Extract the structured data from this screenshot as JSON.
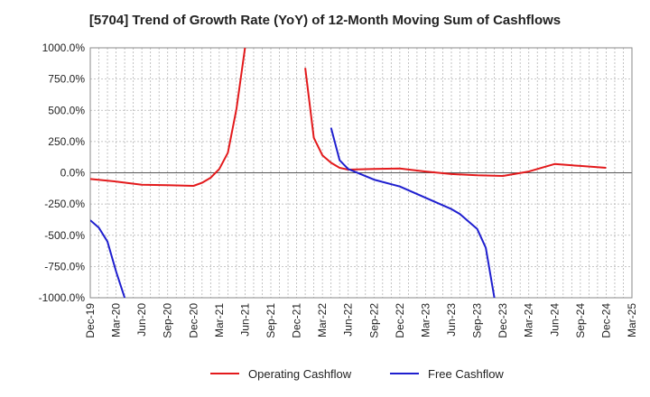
{
  "chart_data": {
    "type": "line",
    "title": "[5704]  Trend of Growth Rate (YoY) of 12-Month Moving Sum of Cashflows",
    "xlabel": "",
    "ylabel": "",
    "ylim": [
      -1000,
      1000
    ],
    "yticks": [
      1000,
      750,
      500,
      250,
      0,
      -250,
      -500,
      -750,
      -1000
    ],
    "ytick_labels": [
      "1000.0%",
      "750.0%",
      "500.0%",
      "250.0%",
      "0.0%",
      "-250.0%",
      "-500.0%",
      "-750.0%",
      "-1000.0%"
    ],
    "x_start": "2019-12",
    "x_end": "2025-03",
    "xtick_labels": [
      "Dec-19",
      "Mar-20",
      "Jun-20",
      "Sep-20",
      "Dec-20",
      "Mar-21",
      "Jun-21",
      "Sep-21",
      "Dec-21",
      "Mar-22",
      "Jun-22",
      "Sep-22",
      "Dec-22",
      "Mar-23",
      "Jun-23",
      "Sep-23",
      "Dec-23",
      "Mar-24",
      "Jun-24",
      "Sep-24",
      "Dec-24",
      "Mar-25"
    ],
    "grid": true,
    "legend_position": "bottom",
    "series": [
      {
        "name": "Operating Cashflow",
        "color": "#e31a1c",
        "segments": [
          [
            [
              "2019-12",
              -50
            ],
            [
              "2020-03",
              -70
            ],
            [
              "2020-06",
              -95
            ],
            [
              "2020-09",
              -100
            ],
            [
              "2020-12",
              -105
            ],
            [
              "2021-01",
              -80
            ],
            [
              "2021-02",
              -40
            ],
            [
              "2021-03",
              30
            ],
            [
              "2021-04",
              160
            ],
            [
              "2021-05",
              510
            ],
            [
              "2021-06",
              1000
            ]
          ],
          [
            [
              "2022-01",
              840
            ],
            [
              "2022-02",
              280
            ],
            [
              "2022-03",
              140
            ],
            [
              "2022-04",
              80
            ],
            [
              "2022-05",
              40
            ],
            [
              "2022-06",
              25
            ],
            [
              "2022-09",
              30
            ],
            [
              "2022-12",
              35
            ],
            [
              "2023-03",
              10
            ],
            [
              "2023-06",
              -10
            ],
            [
              "2023-09",
              -20
            ],
            [
              "2023-12",
              -25
            ],
            [
              "2024-03",
              10
            ],
            [
              "2024-06",
              70
            ],
            [
              "2024-09",
              55
            ],
            [
              "2024-12",
              40
            ]
          ]
        ]
      },
      {
        "name": "Free Cashflow",
        "color": "#1f1fcf",
        "segments": [
          [
            [
              "2019-12",
              -380
            ],
            [
              "2020-01",
              -440
            ],
            [
              "2020-02",
              -550
            ],
            [
              "2020-03",
              -790
            ],
            [
              "2020-04",
              -1000
            ]
          ],
          [
            [
              "2022-04",
              360
            ],
            [
              "2022-05",
              100
            ],
            [
              "2022-06",
              30
            ],
            [
              "2022-09",
              -55
            ],
            [
              "2022-12",
              -110
            ],
            [
              "2023-03",
              -200
            ],
            [
              "2023-06",
              -290
            ],
            [
              "2023-07",
              -330
            ],
            [
              "2023-08",
              -390
            ],
            [
              "2023-09",
              -450
            ],
            [
              "2023-10",
              -600
            ],
            [
              "2023-11",
              -1000
            ]
          ]
        ]
      }
    ]
  }
}
